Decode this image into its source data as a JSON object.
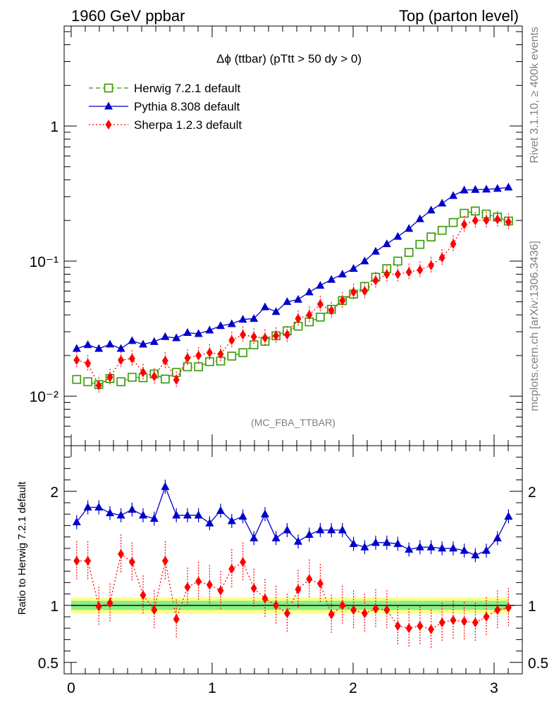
{
  "header": {
    "left": "1960 GeV ppbar",
    "right": "Top (parton level)"
  },
  "side_labels": {
    "rivet": "Rivet 3.1.10, ≥ 400k events",
    "ref": "mcplots.cern.ch [arXiv:1306.3436]"
  },
  "plot_title": "Δϕ (ttbar) (pTtt > 50 dy > 0)",
  "analysis_tag": "(MC_FBA_TTBAR)",
  "colors": {
    "herwig": "#339900",
    "pythia": "#0000cc",
    "sherpa": "#ff0000",
    "band_outer": "#ffff88",
    "band_inner": "#88ee88"
  },
  "chart_data": [
    {
      "type": "line",
      "panel": "main",
      "title": "Δϕ (ttbar) (pTtt > 50 dy > 0)",
      "xlim": [
        -0.05,
        3.2
      ],
      "ylim": [
        0.0043,
        5.5
      ],
      "yscale": "log",
      "ytick_labels": [
        "10⁻²",
        "10⁻¹",
        "1"
      ],
      "yticks": [
        0.01,
        0.1,
        1
      ],
      "legend_position": "top-left",
      "x": [
        0.039,
        0.118,
        0.196,
        0.275,
        0.353,
        0.432,
        0.51,
        0.589,
        0.667,
        0.746,
        0.825,
        0.903,
        0.982,
        1.06,
        1.139,
        1.218,
        1.296,
        1.375,
        1.453,
        1.532,
        1.61,
        1.689,
        1.767,
        1.846,
        1.924,
        2.003,
        2.082,
        2.16,
        2.239,
        2.317,
        2.396,
        2.474,
        2.553,
        2.631,
        2.71,
        2.788,
        2.867,
        2.945,
        3.024,
        3.102
      ],
      "series": [
        {
          "name": "Herwig 7.2.1 default",
          "marker": "open-square",
          "line": "dashed",
          "values": [
            0.0133,
            0.0128,
            0.0122,
            0.0135,
            0.0128,
            0.0138,
            0.0137,
            0.0146,
            0.0134,
            0.015,
            0.0165,
            0.0165,
            0.018,
            0.0182,
            0.0198,
            0.021,
            0.024,
            0.0255,
            0.028,
            0.0305,
            0.033,
            0.0355,
            0.0385,
            0.044,
            0.051,
            0.057,
            0.065,
            0.076,
            0.088,
            0.1,
            0.116,
            0.133,
            0.151,
            0.169,
            0.193,
            0.226,
            0.235,
            0.223,
            0.212,
            0.198
          ]
        },
        {
          "name": "Pythia 8.308 default",
          "marker": "filled-triangle",
          "line": "solid",
          "values": [
            0.0225,
            0.024,
            0.0225,
            0.0242,
            0.0225,
            0.0257,
            0.0242,
            0.0253,
            0.0275,
            0.027,
            0.0295,
            0.029,
            0.0308,
            0.0332,
            0.0343,
            0.037,
            0.0375,
            0.0457,
            0.0422,
            0.05,
            0.052,
            0.059,
            0.066,
            0.073,
            0.08,
            0.088,
            0.1,
            0.118,
            0.134,
            0.152,
            0.174,
            0.205,
            0.238,
            0.268,
            0.305,
            0.335,
            0.338,
            0.34,
            0.344,
            0.352
          ]
        },
        {
          "name": "Sherpa 1.2.3 default",
          "marker": "filled-diamond",
          "line": "dotted",
          "values": [
            0.0185,
            0.0175,
            0.012,
            0.0138,
            0.0185,
            0.019,
            0.015,
            0.014,
            0.0183,
            0.0132,
            0.0192,
            0.02,
            0.021,
            0.0205,
            0.026,
            0.0285,
            0.0275,
            0.027,
            0.028,
            0.0285,
            0.0375,
            0.04,
            0.048,
            0.043,
            0.051,
            0.059,
            0.06,
            0.072,
            0.08,
            0.08,
            0.083,
            0.086,
            0.093,
            0.106,
            0.134,
            0.187,
            0.2,
            0.201,
            0.204,
            0.195
          ]
        }
      ]
    },
    {
      "type": "line",
      "panel": "ratio",
      "ylabel": "Ratio to Herwig 7.2.1 default",
      "xlim": [
        -0.05,
        3.2
      ],
      "ylim": [
        0.4,
        2.4
      ],
      "yticks": [
        0.5,
        1,
        2
      ],
      "xticks": [
        0,
        1,
        2,
        3
      ],
      "xtick_labels": [
        "0",
        "1",
        "2",
        "3"
      ],
      "ytick_labels": [
        "0.5",
        "1",
        "2"
      ],
      "reference_band": {
        "outer": [
          0.93,
          1.07
        ],
        "inner": [
          0.96,
          1.04
        ]
      },
      "series": [
        {
          "name": "Pythia 8.308 default",
          "values": [
            1.73,
            1.86,
            1.86,
            1.81,
            1.79,
            1.84,
            1.79,
            1.76,
            2.04,
            1.79,
            1.79,
            1.79,
            1.72,
            1.83,
            1.74,
            1.78,
            1.59,
            1.8,
            1.59,
            1.66,
            1.56,
            1.62,
            1.66,
            1.66,
            1.66,
            1.54,
            1.51,
            1.55,
            1.55,
            1.54,
            1.49,
            1.51,
            1.51,
            1.5,
            1.5,
            1.48,
            1.44,
            1.48,
            1.59,
            1.78
          ]
        },
        {
          "name": "Sherpa 1.2.3 default",
          "values": [
            1.39,
            1.39,
            0.99,
            1.02,
            1.45,
            1.38,
            1.09,
            0.96,
            1.39,
            0.88,
            1.16,
            1.21,
            1.18,
            1.13,
            1.32,
            1.38,
            1.15,
            1.06,
            1.0,
            0.93,
            1.14,
            1.23,
            1.19,
            0.92,
            1.0,
            0.96,
            0.93,
            0.97,
            0.96,
            0.82,
            0.8,
            0.82,
            0.79,
            0.85,
            0.87,
            0.86,
            0.85,
            0.9,
            0.96,
            0.98
          ]
        }
      ]
    }
  ]
}
